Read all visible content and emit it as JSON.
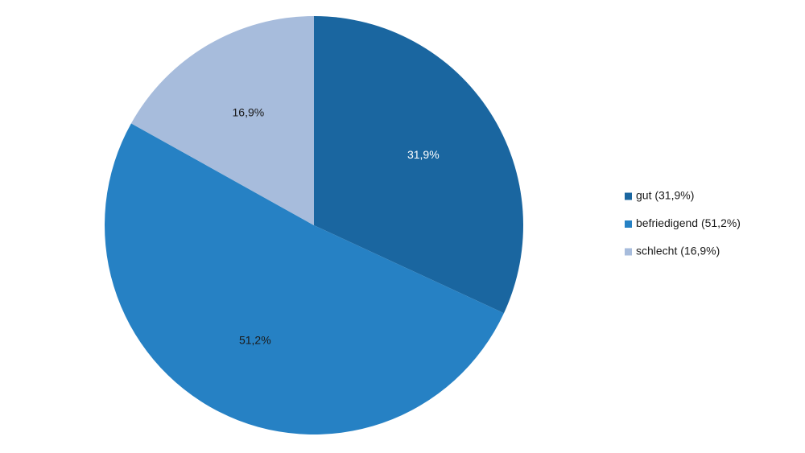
{
  "chart_data": {
    "type": "pie",
    "categories": [
      "gut (31,9%)",
      "befriedigend (51,2%)",
      "schlecht (16,9%)"
    ],
    "values": [
      31.9,
      51.2,
      16.9
    ],
    "value_labels": [
      "31,9%",
      "51,2%",
      "16,9%"
    ],
    "colors": [
      "#1a66a0",
      "#2681c4",
      "#a7bcdc"
    ],
    "label_colors": [
      "#ffffff",
      "#1a1a1a",
      "#1a1a1a"
    ],
    "legend": "right"
  }
}
